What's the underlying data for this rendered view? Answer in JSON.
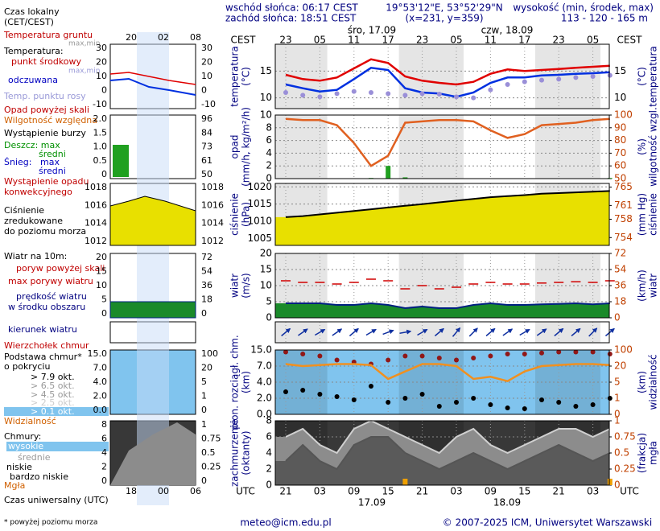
{
  "header": {
    "sunrise": "wschód słońca: 06:17 CEST",
    "sunset": "zachód słońca: 18:51 CEST",
    "coords": "19°53'12\"E, 53°52'29\"N",
    "grid": "(x=231, y=359)",
    "height_title": "wysokość (min, środek, max)",
    "height": "113 - 120 - 165 m"
  },
  "time_axis": {
    "cest": [
      "23",
      null,
      "05",
      null,
      "11",
      null,
      "17",
      null,
      "23",
      null,
      "05",
      null,
      "11",
      null,
      "17",
      null,
      "23",
      null,
      "05",
      null
    ],
    "utc": [
      "21",
      null,
      "03",
      null,
      "09",
      null,
      "15",
      null,
      "21",
      null,
      "03",
      null,
      "09",
      null,
      "15",
      null,
      "21",
      null,
      "03",
      null
    ],
    "cest_label": "CEST",
    "utc_label": "UTC",
    "dates_top": [
      "śro, 17.09",
      "czw, 18.09"
    ],
    "dates_bottom": [
      "17.09",
      "18.09"
    ]
  },
  "legend": {
    "local_time": "Czas lokalny",
    "local_zone": "(CET/CEST)",
    "ground_temp": "Temperatura gruntu",
    "ground_maxmin": "max,min",
    "temp": "Temperatura:",
    "temp_mid": "punkt środkowy",
    "temp_maxmin": "max,min",
    "feels": "odczuwana",
    "dew": "Temp. punktu rosy",
    "precip_over": "Opad powyżej skali",
    "humidity": "Wilgotność względna",
    "storm": "Wystąpienie burzy",
    "rain_max": "Deszcz: max",
    "rain_mean": "średni",
    "snow": "Śnieg:",
    "snow_max": "max",
    "snow_mean": "średni",
    "conv1": "Wystąpienie opadu",
    "conv2": "konwekcyjnego",
    "press1": "Ciśnienie",
    "press2": "zredukowane",
    "press3": "do poziomu morza",
    "wind": "Wiatr na 10m:",
    "gust_over": "poryw powyżej skali",
    "gust_max": "max porywy wiatru",
    "speed1": "prędkość wiatru",
    "speed2": "w środku obszaru",
    "direction": "kierunek wiatru",
    "cloud_top": "Wierzchołek chmur",
    "cloud_base1": "Podstawa chmur*",
    "cloud_base2": "o pokryciu",
    "okt79": "> 7.9 okt.",
    "okt65": "> 6.5 okt.",
    "okt45": "> 4.5 okt.",
    "okt25": "> 2.5 okt.",
    "okt01": "> 0.1 okt.",
    "visibility": "Widzialność",
    "clouds": "Chmury:",
    "high": "wysokie",
    "middle": "średnie",
    "low": "niskie",
    "very_low": "bardzo niskie",
    "fog": "Mgła",
    "utc_time": "Czas uniwersalny (UTC)",
    "note": "* powyżej poziomu morza",
    "left_top": [
      "20",
      "02",
      "08"
    ],
    "left_bottom": [
      "18",
      "00",
      "06"
    ]
  },
  "left_ticks": [
    {
      "left": [
        "30",
        "20",
        "10",
        "0",
        "-10"
      ],
      "right": [
        "30",
        "20",
        "10",
        "0",
        "-10"
      ]
    },
    {
      "left": [
        "2.0",
        "1.5",
        "1.0",
        "0.5",
        "0"
      ],
      "right": [
        "96",
        "84",
        "73",
        "61",
        "50"
      ]
    },
    {
      "left": [
        "1018",
        "1016",
        "1014",
        "1012"
      ],
      "right": [
        "1018",
        "1016",
        "1014",
        "1012"
      ]
    },
    {
      "left": [
        "20",
        "15",
        "10",
        "5",
        "0"
      ],
      "right": [
        "72",
        "54",
        "36",
        "18",
        "0"
      ]
    },
    {
      "left": [],
      "right": []
    },
    {
      "left": [
        "15.0",
        "7.0",
        "4.0",
        "2.0",
        "0.0"
      ],
      "right": [
        "100",
        "20",
        "5",
        "1",
        "0"
      ]
    },
    {
      "left": [
        "8",
        "6",
        "4",
        "2",
        "0"
      ],
      "right": [
        "1",
        "0.75",
        "0.5",
        "0.25",
        "0"
      ]
    }
  ],
  "footer": {
    "email": "meteo@icm.edu.pl",
    "copyright": "© 2007-2025 ICM, Uniwersytet Warszawski"
  },
  "chart_data": [
    {
      "type": "line",
      "ylabel": [
        "temperatura",
        "(°C)"
      ],
      "y2label": [
        "(°C)",
        "temperatura"
      ],
      "ylim": [
        8,
        20
      ],
      "yticks": [
        10,
        15
      ],
      "background": "#ffffff",
      "grid": true,
      "series": [
        {
          "style": "line",
          "color": "#e00000",
          "values": [
            14.3,
            13.5,
            13.2,
            13.8,
            15.5,
            17.2,
            16.5,
            14.0,
            13.2,
            12.8,
            12.5,
            13.0,
            14.5,
            15.3,
            15.0,
            15.2,
            15.4,
            15.6,
            15.8,
            16.0
          ]
        },
        {
          "style": "line",
          "color": "#0030e0",
          "values": [
            12.5,
            11.8,
            11.2,
            11.5,
            13.5,
            15.6,
            15.2,
            11.8,
            11.0,
            10.8,
            10.2,
            11.0,
            12.8,
            13.8,
            13.8,
            14.2,
            14.3,
            14.5,
            14.6,
            14.8
          ]
        },
        {
          "style": "dots",
          "color": "#9a8fd8",
          "values": [
            11.0,
            10.5,
            10.2,
            10.8,
            11.2,
            11.0,
            10.8,
            10.5,
            10.8,
            10.7,
            10.2,
            10.0,
            11.5,
            12.5,
            13.0,
            13.3,
            13.5,
            13.8,
            14.0,
            14.2
          ]
        }
      ]
    },
    {
      "type": "bar",
      "ylabel": [
        "opad",
        "(mm/h, kg/m²/h)"
      ],
      "y2label": [
        "(%)",
        "wilgotność wzgl."
      ],
      "ylim": [
        0,
        10
      ],
      "yticks": [
        0,
        2,
        4,
        6,
        8,
        10
      ],
      "y2lim": [
        50,
        100
      ],
      "y2ticks": [
        50,
        60,
        70,
        80,
        90,
        100
      ],
      "background": "#ffffff",
      "grid": true,
      "series": [
        {
          "style": "bars",
          "color": "#20a020",
          "values": [
            0,
            0,
            0,
            0,
            0,
            0.1,
            2.0,
            0.2,
            0,
            0,
            0,
            0,
            0,
            0,
            0,
            0,
            0,
            0,
            0,
            0.1
          ]
        },
        {
          "style": "line",
          "color": "#e06020",
          "axis": "y2",
          "values": [
            97,
            96,
            96,
            92,
            78,
            60,
            68,
            94,
            95,
            96,
            96,
            95,
            88,
            82,
            85,
            92,
            93,
            94,
            96,
            97
          ]
        }
      ]
    },
    {
      "type": "area",
      "ylabel": [
        "ciśnienie",
        "(hPa)"
      ],
      "y2label": [
        "(mm Hg)",
        "ciśnienie"
      ],
      "ylim": [
        1003,
        1021
      ],
      "yticks": [
        1005,
        1010,
        1015,
        1020
      ],
      "y2lim": [
        752.3,
        765.8
      ],
      "y2ticks": [
        754,
        758,
        761,
        765
      ],
      "background": "#ffffff",
      "grid": true,
      "series": [
        {
          "style": "area",
          "color": "#000000",
          "fill": "#e8e000",
          "values": [
            1011.2,
            1011.5,
            1012,
            1012.5,
            1013,
            1013.5,
            1014,
            1014.5,
            1015,
            1015.5,
            1016,
            1016.5,
            1017,
            1017.3,
            1017.6,
            1018,
            1018.2,
            1018.4,
            1018.6,
            1018.8
          ]
        }
      ]
    },
    {
      "type": "area",
      "ylabel": [
        "wiatr",
        "(m/s)"
      ],
      "y2label": [
        "(km/h)",
        "wiatr"
      ],
      "ylim": [
        0,
        20
      ],
      "yticks": [
        0,
        5,
        10,
        15,
        20
      ],
      "y2lim": [
        0,
        72
      ],
      "y2ticks": [
        0,
        18,
        36,
        54,
        72
      ],
      "background": "#ffffff",
      "grid": true,
      "series": [
        {
          "style": "area",
          "color": "#002080",
          "fill": "#1a8a2a",
          "values": [
            4.5,
            4.5,
            4.5,
            4,
            4,
            4.5,
            4,
            3,
            3.5,
            3,
            3,
            4,
            4.5,
            4,
            4,
            4.2,
            4.3,
            4.5,
            4.2,
            4.5
          ]
        },
        {
          "style": "dash",
          "color": "#d00000",
          "values": [
            11.5,
            11,
            11,
            10.5,
            11,
            12,
            11.5,
            9,
            10,
            9,
            9.5,
            10.5,
            11,
            10.5,
            10.5,
            10.8,
            11,
            11.2,
            11,
            11.5
          ]
        }
      ]
    },
    {
      "type": "vector",
      "background": "#ffffff",
      "color": "#1030a0",
      "values": [
        230,
        235,
        240,
        235,
        230,
        240,
        250,
        260,
        240,
        230,
        220,
        225,
        230,
        235,
        240,
        235,
        230,
        230,
        225,
        230
      ]
    },
    {
      "type": "scatter",
      "ylabel": [
        "pion. rozciągł. chm.",
        "(km)"
      ],
      "y2label": [
        "(km)",
        "widzialność"
      ],
      "ylim": [
        0,
        15
      ],
      "piecewise": true,
      "yticks": [
        {
          "value": 0,
          "label": "0.0"
        },
        {
          "value": 2,
          "label": "2.0"
        },
        {
          "value": 4,
          "label": "4.0"
        },
        {
          "value": 7,
          "label": "7.0"
        },
        {
          "value": 15,
          "label": "15.0"
        }
      ],
      "y2lim": [
        0,
        100
      ],
      "y2ticks": [
        0,
        1,
        5,
        20,
        100
      ],
      "background": "#80c4ee",
      "grid": true,
      "series": [
        {
          "style": "dots",
          "color": "#901818",
          "values": [
            14,
            13,
            12,
            10,
            9,
            8,
            10,
            12,
            12,
            11,
            10,
            11,
            12,
            13,
            13,
            13.5,
            14,
            14,
            14,
            13
          ]
        },
        {
          "style": "dots",
          "color": "#000000",
          "values": [
            2.8,
            3,
            2.5,
            2.2,
            1.8,
            3.5,
            1.5,
            2,
            2.5,
            1,
            1.5,
            2,
            1.2,
            0.8,
            0.7,
            1.8,
            1.5,
            1,
            1.2,
            2
          ]
        },
        {
          "style": "line",
          "color": "#f09020",
          "axis": "y2",
          "values": [
            30,
            20,
            25,
            30,
            30,
            25,
            8,
            15,
            30,
            30,
            20,
            8,
            10,
            6,
            15,
            20,
            25,
            30,
            30,
            25
          ]
        }
      ]
    },
    {
      "type": "area",
      "ylabel": [
        "zachmurzenie",
        "(oktanty)"
      ],
      "y2label": [
        "(frakcja)",
        "mgła"
      ],
      "ylim": [
        0,
        8
      ],
      "yticks": [
        0,
        2,
        4,
        6,
        8
      ],
      "y2lim": [
        0,
        1
      ],
      "y2ticks": [
        0,
        0.25,
        0.5,
        0.75,
        1
      ],
      "background": "#383838",
      "grid": true,
      "series": [
        {
          "style": "area",
          "color": "#d0d0d0",
          "fill": "#8c8c8c",
          "values": [
            6,
            7,
            5,
            4,
            7,
            8,
            7,
            6,
            5,
            4,
            6,
            7,
            5,
            4,
            5,
            6,
            7,
            7,
            6,
            7
          ]
        },
        {
          "style": "area",
          "color": "#555555",
          "fill": "#5a5a5a",
          "values": [
            3,
            5,
            3,
            2,
            5,
            6,
            6,
            4,
            3,
            2,
            3,
            4,
            3,
            2,
            3,
            4,
            5,
            4,
            3,
            4
          ]
        },
        {
          "style": "bars",
          "color": "#f0a000",
          "axis": "y2",
          "values": [
            0,
            0,
            0,
            0,
            0,
            0,
            0,
            0.1,
            0,
            0,
            0,
            0,
            0,
            0,
            0,
            0,
            0,
            0,
            0,
            0.1
          ]
        }
      ]
    }
  ]
}
